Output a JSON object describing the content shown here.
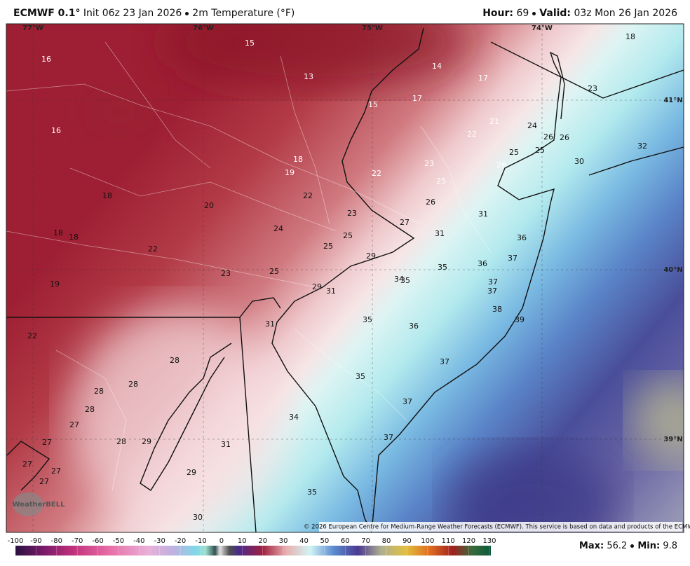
{
  "header": {
    "model": "ECMWF 0.1°",
    "init": "Init 06z 23 Jan 2026",
    "field": "2m Temperature (°F)",
    "hour_label": "Hour:",
    "hour": "69",
    "valid_label": "Valid:",
    "valid": "03z Mon 26 Jan 2026"
  },
  "map": {
    "longitudes": [
      "77°W",
      "76°W",
      "75°W",
      "74°W"
    ],
    "latitudes": [
      "41°N",
      "40°N",
      "39°N"
    ],
    "labels": [
      16,
      15,
      13,
      14,
      17,
      18,
      23,
      16,
      15,
      17,
      21,
      24,
      22,
      26,
      26,
      25,
      25,
      32,
      18,
      19,
      22,
      23,
      26,
      30,
      25,
      18,
      22,
      20,
      26,
      23,
      31,
      27,
      24,
      18,
      18,
      25,
      31,
      36,
      25,
      22,
      29,
      37,
      35,
      36,
      25,
      23,
      34,
      35,
      37,
      19,
      29,
      31,
      37,
      38,
      39,
      31,
      35,
      36,
      22,
      28,
      37,
      28,
      28,
      35,
      28,
      37,
      34,
      27,
      37,
      27,
      28,
      29,
      31,
      27,
      27,
      29,
      27,
      35,
      30
    ],
    "copyright": "© 2026 European Centre for Medium-Range Weather Forecasts (ECMWF). This service is based on data and products of the ECMWF.",
    "logo": "WeatherBELL"
  },
  "colorbar": {
    "ticks": [
      -100,
      -90,
      -80,
      -70,
      -60,
      -50,
      -40,
      -30,
      -20,
      -10,
      0,
      10,
      20,
      30,
      40,
      50,
      60,
      70,
      80,
      90,
      100,
      110,
      120,
      130
    ]
  },
  "footer": {
    "max_label": "Max:",
    "max": 56.2,
    "min_label": "Min:",
    "min": 9.8
  }
}
